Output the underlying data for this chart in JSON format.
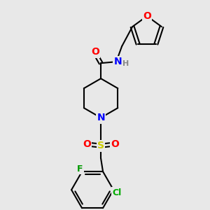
{
  "bg_color": "#e8e8e8",
  "bond_color": "#000000",
  "bond_width": 1.5,
  "atom_colors": {
    "O": "#ff0000",
    "N": "#0000ff",
    "S": "#cccc00",
    "F": "#009900",
    "Cl": "#00aa00",
    "C": "#000000",
    "H": "#888888"
  },
  "font_size": 9
}
